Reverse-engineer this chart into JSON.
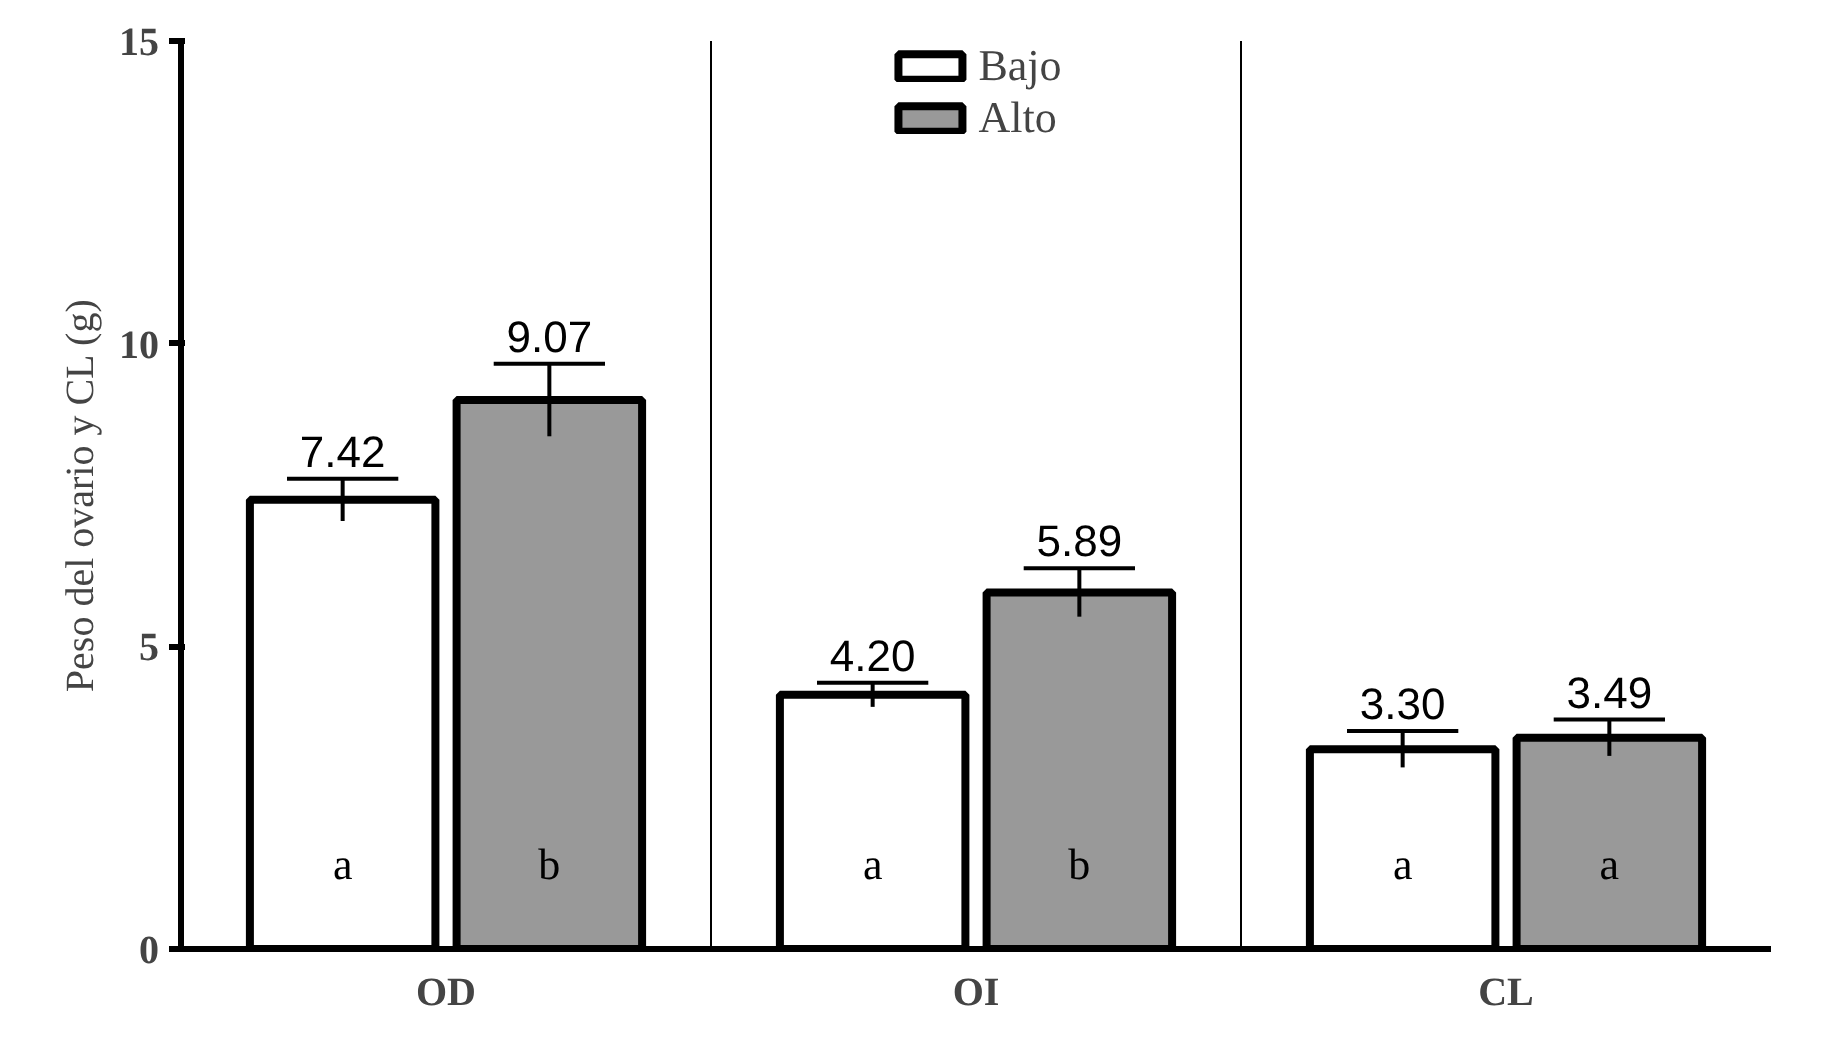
{
  "chart_data": {
    "type": "bar",
    "ylabel": "Peso del ovario y CL (g)",
    "categories": [
      "OD",
      "OI",
      "CL"
    ],
    "series": [
      {
        "name": "Bajo",
        "color": "#ffffff",
        "values": [
          7.42,
          4.2,
          3.3
        ],
        "errors": [
          0.35,
          0.2,
          0.3
        ],
        "value_labels": [
          "7.42",
          "4.20",
          "3.30"
        ]
      },
      {
        "name": "Alto",
        "color": "#999999",
        "values": [
          9.07,
          5.89,
          3.49
        ],
        "errors": [
          0.6,
          0.4,
          0.3
        ],
        "value_labels": [
          "9.07",
          "5.89",
          "3.49"
        ]
      }
    ],
    "ylim": [
      0,
      15
    ],
    "yticks": [
      0,
      5,
      10,
      15
    ],
    "grid": false,
    "legend": "top",
    "annotations": [
      "a",
      "b",
      "a",
      "b",
      "a",
      "a"
    ]
  }
}
